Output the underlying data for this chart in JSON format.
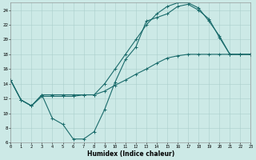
{
  "xlabel": "Humidex (Indice chaleur)",
  "xlim": [
    0,
    23
  ],
  "ylim": [
    6,
    25
  ],
  "xticks": [
    0,
    1,
    2,
    3,
    4,
    5,
    6,
    7,
    8,
    9,
    10,
    11,
    12,
    13,
    14,
    15,
    16,
    17,
    18,
    19,
    20,
    21,
    22,
    23
  ],
  "yticks": [
    6,
    8,
    10,
    12,
    14,
    16,
    18,
    20,
    22,
    24
  ],
  "bg_color": "#cce9e6",
  "grid_color": "#aacfcc",
  "line_color": "#1a6b6b",
  "line1_x": [
    0,
    1,
    2,
    3,
    4,
    5,
    6,
    7,
    8,
    9,
    10,
    11,
    12,
    13,
    14,
    15,
    16,
    17,
    18,
    19,
    20,
    21,
    22,
    23
  ],
  "line1_y": [
    14.5,
    11.8,
    11.0,
    12.5,
    9.3,
    8.5,
    6.5,
    6.5,
    7.5,
    10.5,
    14.2,
    17.3,
    19.0,
    22.5,
    23.0,
    23.5,
    24.5,
    24.8,
    24.0,
    22.8,
    20.3,
    18.0,
    18.0,
    18.0
  ],
  "line2_x": [
    0,
    1,
    2,
    3,
    4,
    5,
    6,
    7,
    8,
    9,
    10,
    11,
    12,
    13,
    14,
    15,
    16,
    17,
    18,
    19,
    20,
    21,
    22,
    23
  ],
  "line2_y": [
    14.5,
    11.8,
    11.0,
    12.5,
    12.5,
    12.5,
    12.5,
    12.5,
    12.5,
    14.0,
    16.0,
    18.0,
    20.0,
    22.0,
    23.5,
    24.5,
    25.0,
    25.0,
    24.3,
    22.5,
    20.5,
    18.0,
    18.0,
    18.0
  ],
  "line3_x": [
    0,
    1,
    2,
    3,
    4,
    5,
    6,
    7,
    8,
    9,
    10,
    11,
    12,
    13,
    14,
    15,
    16,
    17,
    18,
    19,
    20,
    21,
    22,
    23
  ],
  "line3_y": [
    14.5,
    11.8,
    11.0,
    12.3,
    12.3,
    12.3,
    12.3,
    12.5,
    12.5,
    13.0,
    13.8,
    14.5,
    15.3,
    16.0,
    16.8,
    17.5,
    17.8,
    18.0,
    18.0,
    18.0,
    18.0,
    18.0,
    18.0,
    18.0
  ]
}
